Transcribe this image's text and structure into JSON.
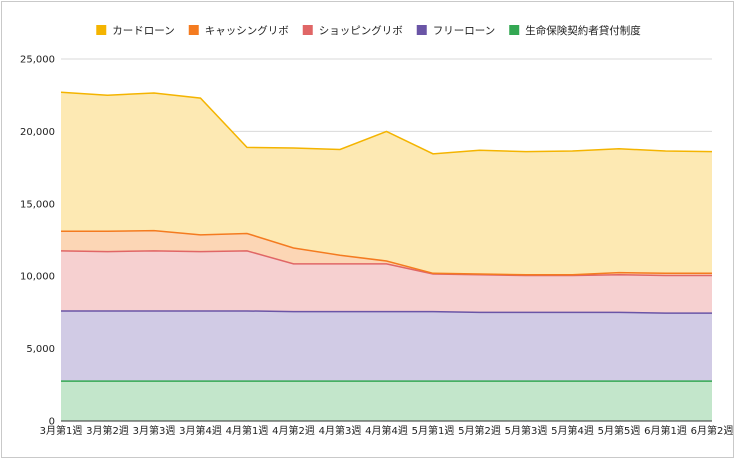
{
  "chart_data": {
    "type": "area",
    "stacked": true,
    "categories": [
      "3月第1週",
      "3月第2週",
      "3月第3週",
      "3月第4週",
      "4月第1週",
      "4月第2週",
      "4月第3週",
      "4月第4週",
      "5月第1週",
      "5月第2週",
      "5月第3週",
      "5月第4週",
      "5月第5週",
      "6月第1週",
      "6月第2週"
    ],
    "ylim": [
      0,
      25000
    ],
    "yticks": [
      "0",
      "5,000",
      "10,000",
      "15,000",
      "20,000",
      "25,000"
    ],
    "grid": true,
    "legend_position": "top",
    "series": [
      {
        "name": "生命保険契約者貸付制度",
        "color": "#34a853",
        "fill": "#c3e6cb",
        "values": [
          2750,
          2750,
          2750,
          2750,
          2750,
          2750,
          2750,
          2750,
          2750,
          2750,
          2750,
          2750,
          2750,
          2750,
          2750
        ]
      },
      {
        "name": "フリーローン",
        "color": "#6a55a6",
        "fill": "#d1cbe5",
        "values": [
          4850,
          4850,
          4850,
          4850,
          4850,
          4800,
          4800,
          4800,
          4800,
          4750,
          4750,
          4750,
          4750,
          4700,
          4700
        ]
      },
      {
        "name": "ショッピングリボ",
        "color": "#e06666",
        "fill": "#f6d0d0",
        "values": [
          4150,
          4100,
          4150,
          4100,
          4150,
          3300,
          3300,
          3300,
          2600,
          2600,
          2550,
          2550,
          2600,
          2600,
          2600
        ]
      },
      {
        "name": "キャッシングリボ",
        "color": "#f47b20",
        "fill": "#fcd6b5",
        "values": [
          1350,
          1400,
          1400,
          1150,
          1200,
          1100,
          600,
          200,
          50,
          50,
          50,
          50,
          150,
          150,
          150
        ]
      },
      {
        "name": "カードローン",
        "color": "#f4b400",
        "fill": "#fde9b3",
        "values": [
          9600,
          9400,
          9500,
          9450,
          5950,
          6900,
          7300,
          8950,
          8250,
          8550,
          8500,
          8550,
          8550,
          8450,
          8400
        ]
      }
    ],
    "legend_order": [
      "カードローン",
      "キャッシングリボ",
      "ショッピングリボ",
      "フリーローン",
      "生命保険契約者貸付制度"
    ]
  }
}
